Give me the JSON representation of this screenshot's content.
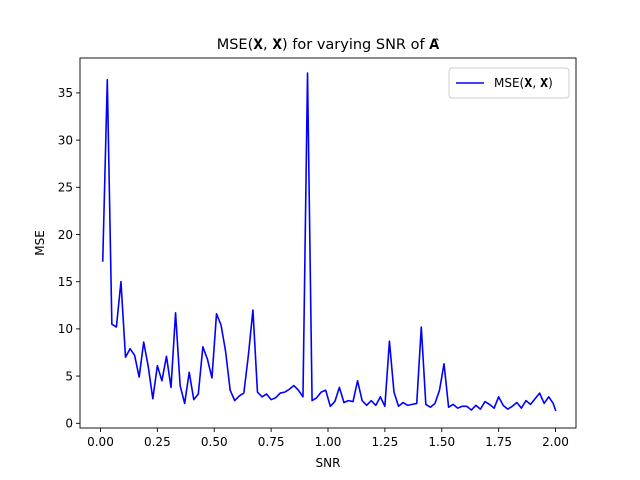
{
  "chart_data": {
    "type": "line",
    "title": "MSE(𝐗, 𝐗̂) for varying SNR of 𝐀̂",
    "xlabel": "SNR",
    "ylabel": "MSE",
    "xlim": [
      -0.09,
      2.09
    ],
    "ylim": [
      -0.5,
      38.7
    ],
    "xticks": [
      0.0,
      0.25,
      0.5,
      0.75,
      1.0,
      1.25,
      1.5,
      1.75,
      2.0
    ],
    "xtick_labels": [
      "0.00",
      "0.25",
      "0.50",
      "0.75",
      "1.00",
      "1.25",
      "1.50",
      "1.75",
      "2.00"
    ],
    "yticks": [
      0,
      5,
      10,
      15,
      20,
      25,
      30,
      35
    ],
    "ytick_labels": [
      "0",
      "5",
      "10",
      "15",
      "20",
      "25",
      "30",
      "35"
    ],
    "grid": false,
    "legend": {
      "placement": "top-right",
      "entries": [
        "MSE(𝐗, 𝐗̂)"
      ]
    },
    "series": [
      {
        "name": "MSE(𝐗, 𝐗̂)",
        "color": "#0000ff",
        "x": [
          0.01,
          0.03,
          0.05,
          0.07,
          0.09,
          0.11,
          0.13,
          0.15,
          0.17,
          0.19,
          0.21,
          0.23,
          0.25,
          0.27,
          0.29,
          0.31,
          0.33,
          0.35,
          0.37,
          0.39,
          0.41,
          0.43,
          0.45,
          0.47,
          0.49,
          0.51,
          0.53,
          0.55,
          0.57,
          0.59,
          0.61,
          0.63,
          0.65,
          0.67,
          0.69,
          0.71,
          0.73,
          0.75,
          0.77,
          0.79,
          0.81,
          0.83,
          0.85,
          0.87,
          0.89,
          0.91,
          0.93,
          0.95,
          0.97,
          0.99,
          1.01,
          1.03,
          1.05,
          1.07,
          1.09,
          1.11,
          1.13,
          1.15,
          1.17,
          1.19,
          1.21,
          1.23,
          1.25,
          1.27,
          1.29,
          1.31,
          1.33,
          1.35,
          1.37,
          1.39,
          1.41,
          1.43,
          1.45,
          1.47,
          1.49,
          1.51,
          1.53,
          1.55,
          1.57,
          1.59,
          1.61,
          1.63,
          1.65,
          1.67,
          1.69,
          1.71,
          1.73,
          1.75,
          1.77,
          1.79,
          1.81,
          1.83,
          1.85,
          1.87,
          1.89,
          1.91,
          1.93,
          1.95,
          1.97,
          1.99,
          2.0
        ],
        "y": [
          17.2,
          36.4,
          10.5,
          10.2,
          15.0,
          7.0,
          7.9,
          7.2,
          4.9,
          8.6,
          6.0,
          2.6,
          6.1,
          4.5,
          7.1,
          3.8,
          11.7,
          4.0,
          2.1,
          5.4,
          2.5,
          3.1,
          8.1,
          6.8,
          4.8,
          11.6,
          10.4,
          7.6,
          3.5,
          2.4,
          2.9,
          3.2,
          7.2,
          12.0,
          3.3,
          2.8,
          3.1,
          2.5,
          2.7,
          3.2,
          3.3,
          3.6,
          4.0,
          3.5,
          2.8,
          37.1,
          2.4,
          2.7,
          3.3,
          3.5,
          1.8,
          2.3,
          3.8,
          2.2,
          2.4,
          2.3,
          4.5,
          2.4,
          1.9,
          2.4,
          1.9,
          2.8,
          1.8,
          8.7,
          3.3,
          1.8,
          2.2,
          1.9,
          2.0,
          2.1,
          10.2,
          2.0,
          1.7,
          2.1,
          3.5,
          6.3,
          1.7,
          2.0,
          1.6,
          1.8,
          1.8,
          1.4,
          1.9,
          1.5,
          2.3,
          2.0,
          1.6,
          2.8,
          1.9,
          1.5,
          1.8,
          2.2,
          1.6,
          2.4,
          2.0,
          2.6,
          3.2,
          2.1,
          2.8,
          2.1,
          1.4
        ]
      }
    ]
  }
}
